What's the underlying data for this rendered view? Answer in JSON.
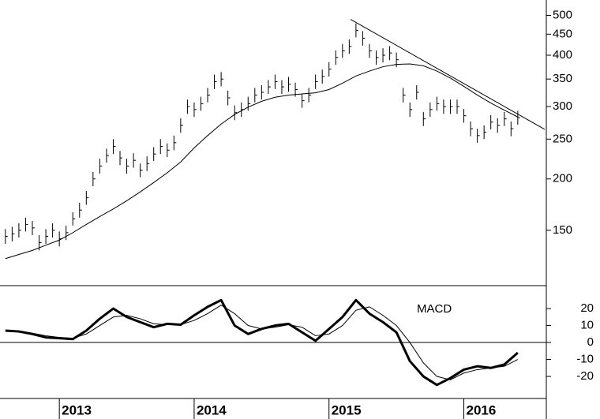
{
  "chart_data": [
    {
      "type": "hlc",
      "log_scale": true,
      "color": "#000000",
      "xlim": [
        2012.56,
        2016.6
      ],
      "ylim": [
        110,
        545
      ],
      "yticks": [
        150,
        200,
        250,
        300,
        350,
        400,
        450,
        500
      ],
      "x": [
        2012.6,
        2012.65,
        2012.7,
        2012.75,
        2012.8,
        2012.85,
        2012.9,
        2012.95,
        2013.0,
        2013.05,
        2013.1,
        2013.15,
        2013.2,
        2013.25,
        2013.3,
        2013.35,
        2013.4,
        2013.45,
        2013.5,
        2013.55,
        2013.6,
        2013.65,
        2013.7,
        2013.75,
        2013.8,
        2013.85,
        2013.9,
        2013.95,
        2014.0,
        2014.05,
        2014.1,
        2014.15,
        2014.2,
        2014.25,
        2014.3,
        2014.35,
        2014.4,
        2014.45,
        2014.5,
        2014.55,
        2014.6,
        2014.65,
        2014.7,
        2014.75,
        2014.8,
        2014.85,
        2014.9,
        2014.95,
        2015.0,
        2015.05,
        2015.1,
        2015.15,
        2015.2,
        2015.25,
        2015.3,
        2015.35,
        2015.4,
        2015.45,
        2015.5,
        2015.55,
        2015.6,
        2015.65,
        2015.7,
        2015.75,
        2015.8,
        2015.85,
        2015.9,
        2015.95,
        2016.0,
        2016.05,
        2016.1,
        2016.15,
        2016.2,
        2016.25,
        2016.3,
        2016.35,
        2016.4
      ],
      "high": [
        151,
        153,
        156,
        161,
        158,
        146,
        151,
        156,
        149,
        154,
        166,
        175,
        187,
        208,
        224,
        237,
        250,
        234,
        224,
        231,
        218,
        227,
        239,
        250,
        244,
        255,
        281,
        312,
        307,
        317,
        333,
        359,
        364,
        328,
        302,
        307,
        317,
        333,
        338,
        348,
        359,
        348,
        354,
        343,
        322,
        333,
        359,
        369,
        385,
        411,
        426,
        437,
        478,
        458,
        426,
        411,
        416,
        421,
        406,
        333,
        307,
        338,
        291,
        307,
        317,
        312,
        312,
        312,
        296,
        276,
        265,
        270,
        286,
        281,
        291,
        276,
        293
      ],
      "low": [
        139,
        141,
        144,
        149,
        146,
        134,
        139,
        144,
        137,
        142,
        154,
        161,
        173,
        192,
        206,
        219,
        230,
        216,
        206,
        213,
        202,
        209,
        221,
        230,
        226,
        235,
        259,
        288,
        283,
        293,
        307,
        331,
        336,
        302,
        278,
        283,
        293,
        307,
        312,
        322,
        331,
        322,
        326,
        317,
        298,
        307,
        331,
        341,
        355,
        379,
        394,
        403,
        442,
        422,
        394,
        379,
        384,
        389,
        374,
        307,
        283,
        312,
        269,
        283,
        293,
        288,
        288,
        288,
        274,
        254,
        245,
        250,
        264,
        259,
        269,
        254,
        271
      ],
      "close": [
        145,
        147,
        150,
        155,
        152,
        140,
        145,
        150,
        143,
        148,
        160,
        168,
        180,
        200,
        215,
        228,
        240,
        225,
        215,
        222,
        210,
        218,
        230,
        240,
        235,
        245,
        270,
        300,
        295,
        305,
        320,
        345,
        350,
        315,
        290,
        295,
        305,
        320,
        325,
        335,
        345,
        335,
        340,
        330,
        310,
        320,
        345,
        355,
        370,
        395,
        410,
        420,
        460,
        440,
        410,
        395,
        400,
        405,
        390,
        320,
        295,
        325,
        280,
        295,
        305,
        300,
        300,
        300,
        285,
        265,
        255,
        260,
        275,
        270,
        280,
        265,
        282
      ],
      "moving_average": {
        "x": [
          2012.6,
          2012.7,
          2012.8,
          2012.9,
          2013.0,
          2013.1,
          2013.2,
          2013.3,
          2013.4,
          2013.5,
          2013.6,
          2013.7,
          2013.8,
          2013.9,
          2014.0,
          2014.1,
          2014.2,
          2014.3,
          2014.4,
          2014.5,
          2014.6,
          2014.7,
          2014.8,
          2014.9,
          2015.0,
          2015.1,
          2015.2,
          2015.3,
          2015.4,
          2015.5,
          2015.6,
          2015.7,
          2015.8,
          2015.9,
          2016.0,
          2016.1,
          2016.2,
          2016.3,
          2016.4
        ],
        "values": [
          128,
          131,
          134,
          138,
          142,
          148,
          155,
          162,
          169,
          177,
          186,
          196,
          207,
          220,
          238,
          255,
          272,
          287,
          299,
          309,
          316,
          320,
          322,
          324,
          330,
          342,
          356,
          366,
          375,
          380,
          381,
          377,
          366,
          352,
          336,
          320,
          306,
          294,
          283
        ]
      },
      "trendline": {
        "x": [
          2015.16,
          2016.6
        ],
        "values": [
          489,
          264
        ]
      }
    },
    {
      "type": "line",
      "annotation": "MACD",
      "zero_line": true,
      "xlim": [
        2012.56,
        2016.6
      ],
      "ylim": [
        -33,
        33.5
      ],
      "yticks": [
        -20,
        -10,
        0,
        10,
        20
      ],
      "xticks": [
        2013,
        2014,
        2015,
        2016
      ],
      "x": [
        2012.6,
        2012.7,
        2012.8,
        2012.9,
        2013.0,
        2013.1,
        2013.2,
        2013.3,
        2013.4,
        2013.5,
        2013.6,
        2013.7,
        2013.8,
        2013.9,
        2014.0,
        2014.1,
        2014.2,
        2014.3,
        2014.4,
        2014.5,
        2014.6,
        2014.7,
        2014.8,
        2014.9,
        2015.0,
        2015.1,
        2015.2,
        2015.3,
        2015.4,
        2015.5,
        2015.6,
        2015.7,
        2015.8,
        2015.9,
        2016.0,
        2016.1,
        2016.2,
        2016.3,
        2016.4
      ],
      "series": [
        {
          "color": "#000000",
          "width": 3,
          "values": [
            7,
            6.5,
            5,
            3,
            2.5,
            2,
            7,
            14,
            20,
            15,
            12,
            9,
            11,
            10.5,
            16,
            21,
            25,
            10,
            5,
            8,
            10,
            11,
            6,
            1,
            8,
            15,
            25,
            17,
            12,
            6,
            -11,
            -20,
            -25,
            -21,
            -16,
            -14,
            -15,
            -13,
            -6
          ]
        },
        {
          "color": "#000000",
          "width": 1,
          "values": [
            6.5,
            6.5,
            5.5,
            4,
            3,
            2.5,
            5,
            10,
            15,
            16,
            14,
            11,
            10.5,
            10.5,
            13,
            17,
            22,
            17,
            10,
            8,
            9,
            10.5,
            9,
            4,
            5,
            10,
            19,
            21,
            16,
            10,
            0,
            -12,
            -20,
            -22,
            -18,
            -16,
            -15,
            -14,
            -10
          ]
        }
      ]
    }
  ]
}
